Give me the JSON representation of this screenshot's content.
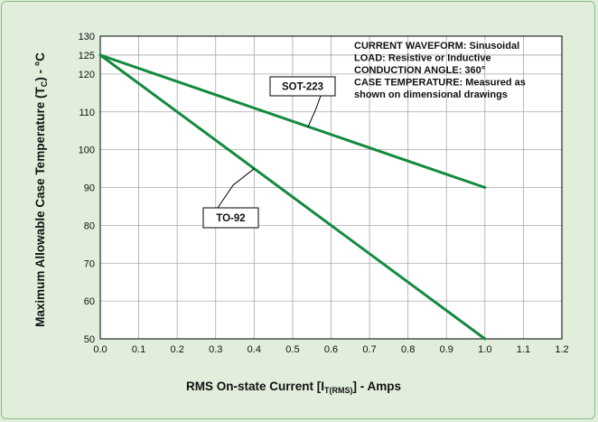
{
  "chart_data": {
    "type": "line",
    "xlabel_parts": [
      "RMS On-state Current [I",
      "T(RMS)",
      "] - Amps"
    ],
    "ylabel_parts": [
      "Maximum Allowable Case Temperature (T",
      "C",
      ") - °C"
    ],
    "xlim": [
      0.0,
      1.2
    ],
    "ylim": [
      50,
      130
    ],
    "x_ticks": [
      "0.0",
      "0.1",
      "0.2",
      "0.3",
      "0.4",
      "0.5",
      "0.6",
      "0.7",
      "0.8",
      "0.9",
      "1.0",
      "1.1",
      "1.2"
    ],
    "y_ticks": [
      50,
      60,
      70,
      80,
      90,
      100,
      110,
      120,
      125,
      130
    ],
    "grid": true,
    "series": [
      {
        "name": "SOT-223",
        "color": "#138a3f",
        "x": [
          0.0,
          1.0
        ],
        "y": [
          125,
          90
        ]
      },
      {
        "name": "TO-92",
        "color": "#138a3f",
        "x": [
          0.0,
          1.0
        ],
        "y": [
          125,
          50
        ]
      }
    ],
    "annotations": {
      "conditions": [
        "CURRENT WAVEFORM: Sinusoidal",
        "LOAD: Resistive or Inductive",
        "CONDUCTION ANGLE: 360°",
        "CASE TEMPERATURE: Measured as",
        "shown on dimensional drawings"
      ],
      "callouts": [
        {
          "label": "SOT-223",
          "target_x": 0.54,
          "target_y": 106
        },
        {
          "label": "TO-92",
          "target_x": 0.4,
          "target_y": 95
        }
      ]
    },
    "colors": {
      "background": "#e1eedb",
      "plot_background": "#ffffff",
      "grid": "#a8a8a8",
      "line": "#138a3f",
      "frame_border": "#7fbf85"
    }
  }
}
